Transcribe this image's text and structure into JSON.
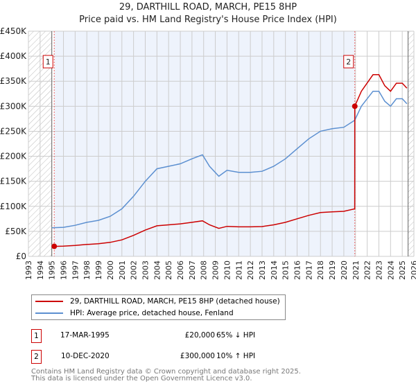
{
  "title": "29, DARTHILL ROAD, MARCH, PE15 8HP",
  "subtitle": "Price paid vs. HM Land Registry's House Price Index (HPI)",
  "legend": {
    "property": "29, DARTHILL ROAD, MARCH, PE15 8HP (detached house)",
    "hpi": "HPI: Average price, detached house, Fenland"
  },
  "transactions": [
    {
      "id": "1",
      "date": "17-MAR-1995",
      "price": "£20,000",
      "delta": "65% ↓ HPI"
    },
    {
      "id": "2",
      "date": "10-DEC-2020",
      "price": "£300,000",
      "delta": "10% ↑ HPI"
    }
  ],
  "footer": [
    "Contains HM Land Registry data © Crown copyright and database right 2025.",
    "This data is licensed under the Open Government Licence v3.0."
  ],
  "chart_data": {
    "type": "line",
    "xlim": [
      1993,
      2026
    ],
    "ylim": [
      0,
      450000
    ],
    "yticks": [
      0,
      50000,
      100000,
      150000,
      200000,
      250000,
      300000,
      350000,
      400000,
      450000
    ],
    "ytick_labels": [
      "£0",
      "£50K",
      "£100K",
      "£150K",
      "£200K",
      "£250K",
      "£300K",
      "£350K",
      "£400K",
      "£450K"
    ],
    "xticks": [
      1993,
      1994,
      1995,
      1996,
      1997,
      1998,
      1999,
      2000,
      2001,
      2002,
      2003,
      2004,
      2005,
      2006,
      2007,
      2008,
      2009,
      2010,
      2011,
      2012,
      2013,
      2014,
      2015,
      2016,
      2017,
      2018,
      2019,
      2020,
      2021,
      2022,
      2023,
      2024,
      2025,
      2026
    ],
    "colors": {
      "property": "#cc0000",
      "hpi": "#5b8fd0",
      "shade": "#eef3fc"
    },
    "sales": [
      {
        "label": "1",
        "x": 1995.21,
        "y": 20000
      },
      {
        "label": "2",
        "x": 2020.94,
        "y": 300000
      }
    ],
    "series": [
      {
        "name": "HPI",
        "x": [
          1995,
          1996,
          1997,
          1998,
          1999,
          2000,
          2001,
          2002,
          2003,
          2004,
          2005,
          2006,
          2007,
          2007.9,
          2008.5,
          2009.3,
          2010,
          2011,
          2012,
          2013,
          2014,
          2015,
          2016,
          2017,
          2018,
          2019,
          2020,
          2020.93,
          2021.5,
          2022.5,
          2023,
          2023.5,
          2024,
          2024.5,
          2025,
          2025.4
        ],
        "y": [
          57000,
          58000,
          62000,
          68000,
          72000,
          80000,
          95000,
          120000,
          150000,
          175000,
          180000,
          185000,
          195000,
          203000,
          180000,
          160000,
          172000,
          168000,
          168000,
          170000,
          180000,
          195000,
          215000,
          235000,
          250000,
          255000,
          258000,
          272000,
          300000,
          330000,
          330000,
          310000,
          300000,
          315000,
          315000,
          305000
        ]
      },
      {
        "name": "Price paid",
        "x": [
          1995.21,
          1996,
          1997,
          1998,
          1999,
          2000,
          2001,
          2002,
          2003,
          2004,
          2005,
          2006,
          2007,
          2007.9,
          2008.5,
          2009.3,
          2010,
          2011,
          2012,
          2013,
          2014,
          2015,
          2016,
          2017,
          2018,
          2019,
          2020,
          2020.93,
          2020.94,
          2021.5,
          2022.5,
          2023,
          2023.5,
          2024,
          2024.5,
          2025,
          2025.4
        ],
        "y": [
          20000,
          20300,
          21700,
          23800,
          25200,
          28000,
          33000,
          42000,
          52500,
          61000,
          63000,
          65000,
          68000,
          71000,
          63000,
          56000,
          60000,
          59000,
          59000,
          59500,
          63000,
          68000,
          75000,
          82000,
          87500,
          89000,
          90000,
          95000,
          300000,
          330000,
          363000,
          363000,
          341000,
          330000,
          346000,
          346000,
          336000
        ]
      }
    ]
  }
}
